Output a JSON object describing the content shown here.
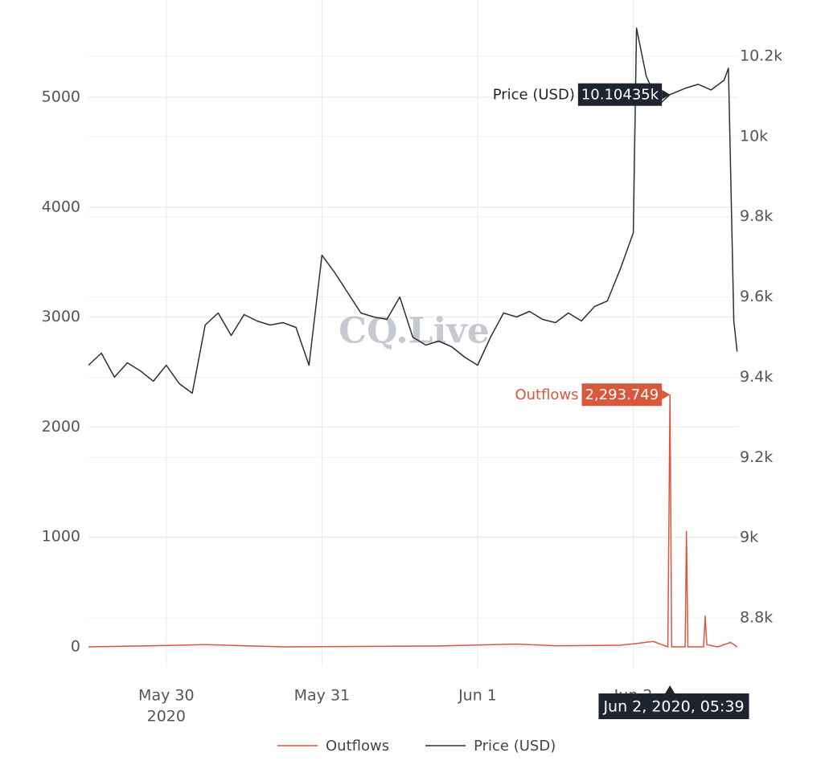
{
  "chart_data": {
    "type": "line",
    "watermark": "CQ.Live",
    "xlim": [
      "2020-05-29T12:00",
      "2020-06-02T16:10"
    ],
    "xticks": [
      {
        "value": "2020-05-30T00:00",
        "label": "May 30",
        "sublabel": "2020"
      },
      {
        "value": "2020-05-31T00:00",
        "label": "May 31"
      },
      {
        "value": "2020-06-01T00:00",
        "label": "Jun 1"
      },
      {
        "value": "2020-06-02T00:00",
        "label": "Jun 2"
      }
    ],
    "ylim": [
      -73,
      5665
    ],
    "yticks": [
      0,
      1000,
      2000,
      3000,
      4000,
      5000
    ],
    "y2lim": [
      8708,
      10280
    ],
    "y2ticks": [
      {
        "value": 8800,
        "label": "8.8k"
      },
      {
        "value": 9000,
        "label": "9k"
      },
      {
        "value": 9200,
        "label": "9.2k"
      },
      {
        "value": 9400,
        "label": "9.4k"
      },
      {
        "value": 9600,
        "label": "9.6k"
      },
      {
        "value": 9800,
        "label": "9.8k"
      },
      {
        "value": 10000,
        "label": "10k"
      },
      {
        "value": 10200,
        "label": "10.2k"
      }
    ],
    "grid": true,
    "legend": "bottom",
    "series": [
      {
        "name": "Outflows",
        "color": "#d9583b",
        "x": [
          "2020-05-29T12:00",
          "2020-05-30T02:00",
          "2020-05-30T06:00",
          "2020-05-30T12:00",
          "2020-05-30T18:00",
          "2020-05-31T18:00",
          "2020-06-01T06:00",
          "2020-06-01T12:00",
          "2020-06-01T22:00",
          "2020-06-02T00:30",
          "2020-06-02T03:00",
          "2020-06-02T05:20",
          "2020-06-02T05:39",
          "2020-06-02T05:55",
          "2020-06-02T08:00",
          "2020-06-02T08:12",
          "2020-06-02T08:25",
          "2020-06-02T10:50",
          "2020-06-02T11:05",
          "2020-06-02T11:20",
          "2020-06-02T13:00",
          "2020-06-02T15:00",
          "2020-06-02T16:00"
        ],
        "values": [
          0,
          15,
          20,
          10,
          0,
          8,
          25,
          10,
          15,
          30,
          50,
          0,
          2293.749,
          0,
          0,
          1050,
          0,
          0,
          280,
          20,
          0,
          40,
          0
        ]
      },
      {
        "name": "Price (USD)",
        "color": "#2a2f3a",
        "axis": "y2",
        "x": [
          "2020-05-29T12:00",
          "2020-05-29T14:00",
          "2020-05-29T16:00",
          "2020-05-29T18:00",
          "2020-05-29T20:00",
          "2020-05-29T22:00",
          "2020-05-30T00:00",
          "2020-05-30T02:00",
          "2020-05-30T04:00",
          "2020-05-30T06:00",
          "2020-05-30T08:00",
          "2020-05-30T10:00",
          "2020-05-30T12:00",
          "2020-05-30T14:00",
          "2020-05-30T16:00",
          "2020-05-30T18:00",
          "2020-05-30T20:00",
          "2020-05-30T22:00",
          "2020-05-31T00:00",
          "2020-05-31T02:00",
          "2020-05-31T04:00",
          "2020-05-31T06:00",
          "2020-05-31T08:00",
          "2020-05-31T10:00",
          "2020-05-31T12:00",
          "2020-05-31T14:00",
          "2020-05-31T16:00",
          "2020-05-31T18:00",
          "2020-05-31T20:00",
          "2020-05-31T22:00",
          "2020-06-01T00:00",
          "2020-06-01T02:00",
          "2020-06-01T04:00",
          "2020-06-01T06:00",
          "2020-06-01T08:00",
          "2020-06-01T10:00",
          "2020-06-01T12:00",
          "2020-06-01T14:00",
          "2020-06-01T16:00",
          "2020-06-01T18:00",
          "2020-06-01T20:00",
          "2020-06-01T22:00",
          "2020-06-02T00:00",
          "2020-06-02T00:30",
          "2020-06-02T02:00",
          "2020-06-02T04:00",
          "2020-06-02T05:39",
          "2020-06-02T08:00",
          "2020-06-02T10:00",
          "2020-06-02T12:00",
          "2020-06-02T14:00",
          "2020-06-02T14:40",
          "2020-06-02T15:30",
          "2020-06-02T16:00"
        ],
        "values": [
          9430,
          9460,
          9400,
          9436,
          9416,
          9390,
          9430,
          9384,
          9360,
          9530,
          9560,
          9504,
          9556,
          9540,
          9530,
          9536,
          9524,
          9430,
          9704,
          9660,
          9610,
          9560,
          9550,
          9544,
          9600,
          9500,
          9480,
          9490,
          9476,
          9450,
          9430,
          9500,
          9560,
          9550,
          9564,
          9544,
          9536,
          9560,
          9540,
          9576,
          9590,
          9670,
          9760,
          10270,
          10150,
          10080,
          10104.35,
          10120,
          10130,
          10116,
          10140,
          10170,
          9540,
          9464
        ]
      }
    ],
    "hover": {
      "x": "2020-06-02T05:39",
      "label": "Jun 2, 2020, 05:39",
      "series_labels": [
        "2,293.749",
        "10.10435k"
      ]
    }
  }
}
